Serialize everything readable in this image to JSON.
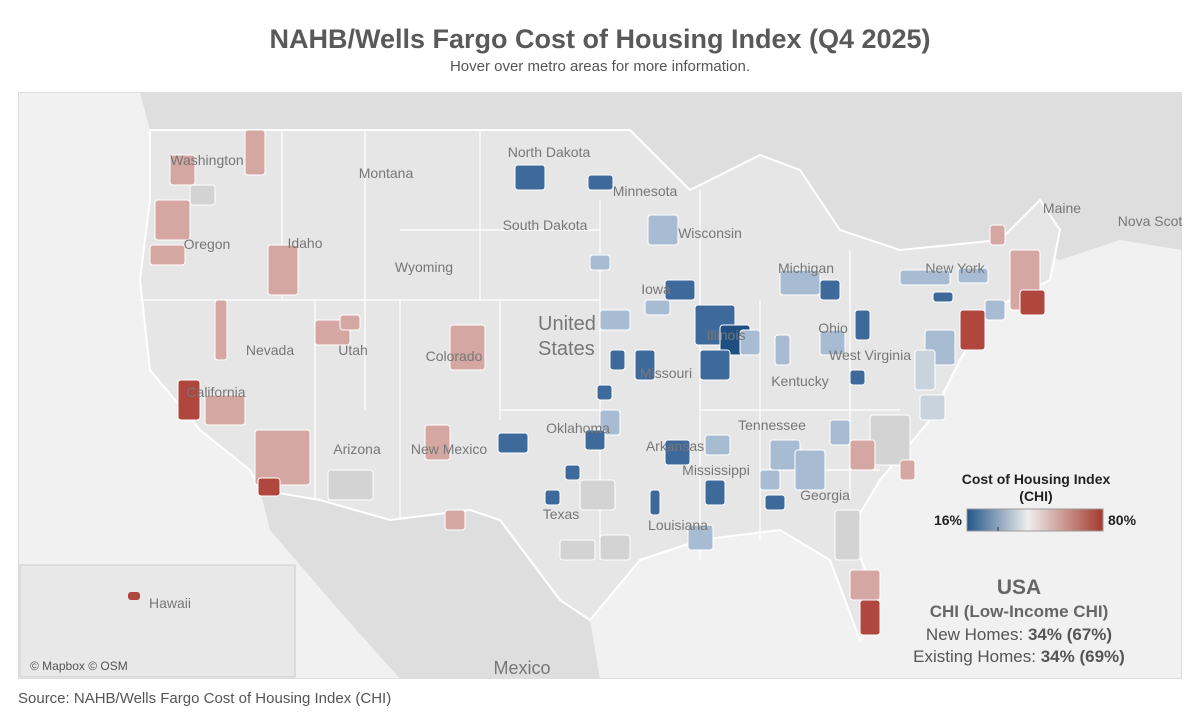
{
  "header": {
    "title": "NAHB/Wells Fargo Cost of Housing Index (Q4 2025)",
    "subtitle": "Hover over metro areas for more information."
  },
  "map": {
    "labels": [
      "Washington",
      "Montana",
      "North Dakota",
      "Minnesota",
      "South Dakota",
      "Wisconsin",
      "Oregon",
      "Idaho",
      "Wyoming",
      "Maine",
      "Nova Scot",
      "Iowa",
      "Michigan",
      "New York",
      "Nevada",
      "Utah",
      "Colorado",
      "Illinois",
      "Ohio",
      "West Virginia",
      "Missouri",
      "Kentucky",
      "California",
      "Arizona",
      "New Mexico",
      "Oklahoma",
      "Arkansas",
      "Tennessee",
      "Mississippi",
      "Georgia",
      "Texas",
      "Louisiana",
      "Hawaii",
      "Mexico"
    ],
    "country": [
      "United",
      "States"
    ],
    "attribution": "© Mapbox © OSM"
  },
  "legend": {
    "title": [
      "Cost of Housing Index",
      "(CHI)"
    ],
    "min": "16%",
    "max": "80%"
  },
  "summary": {
    "region": "USA",
    "subtitle": "CHI (Low-Income CHI)",
    "rows": [
      {
        "label": "New Homes:",
        "value": "34% (67%)"
      },
      {
        "label": "Existing Homes:",
        "value": "34% (69%)"
      }
    ]
  },
  "footer": {
    "source": "Source: NAHB/Wells Fargo Cost of Housing Index (CHI)"
  }
}
